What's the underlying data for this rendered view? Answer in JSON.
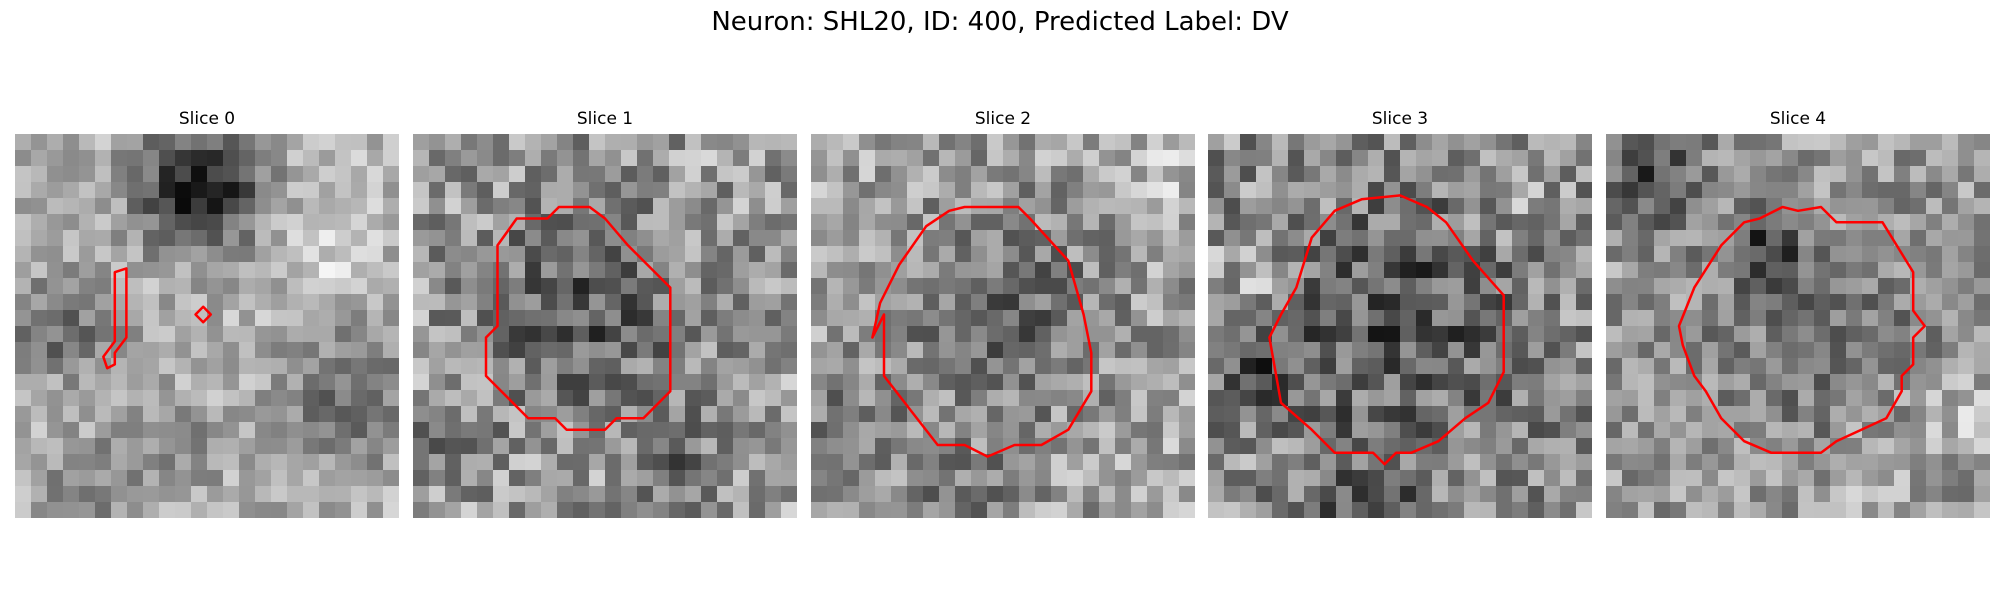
{
  "figure": {
    "title": "Neuron: SHL20, ID: 400, Predicted Label: DV"
  },
  "colors": {
    "background": "#ffffff",
    "contour": "#ff0000",
    "colormap": "grayscale"
  },
  "panels": [
    {
      "title": "Slice 0"
    },
    {
      "title": "Slice 1"
    },
    {
      "title": "Slice 2"
    },
    {
      "title": "Slice 3"
    },
    {
      "title": "Slice 4"
    }
  ]
}
